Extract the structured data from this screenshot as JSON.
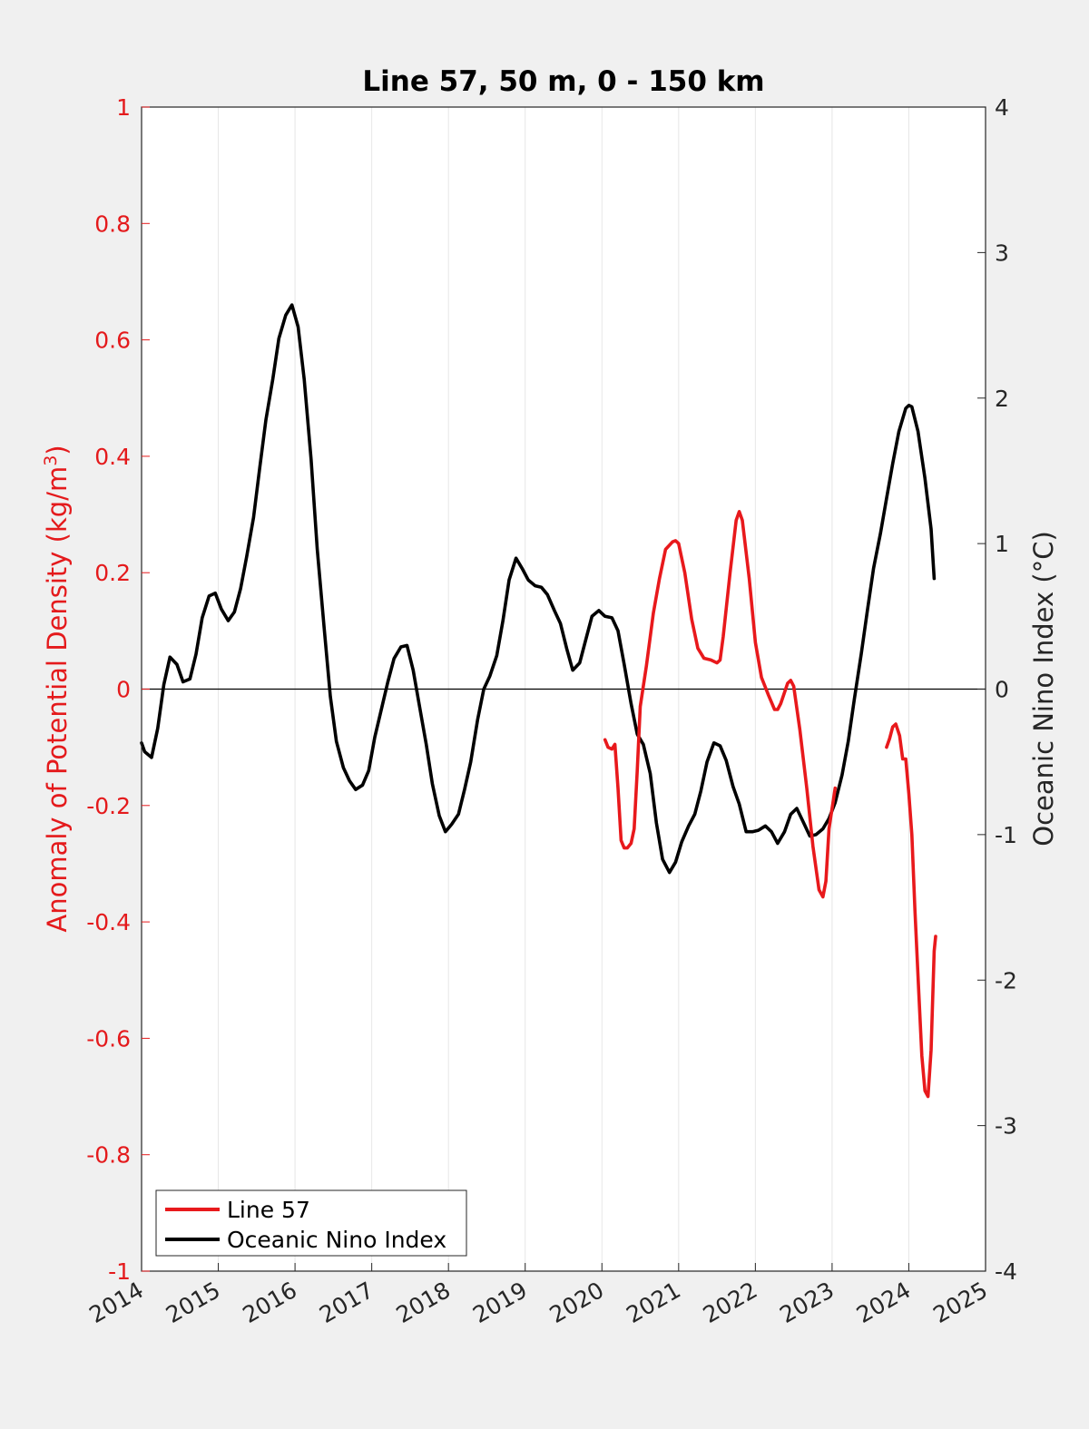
{
  "chart_data": {
    "type": "line",
    "title": "Line 57, 50 m, 0 - 150 km",
    "ylabel_left": {
      "main": "Anomaly of Potential Density (kg/m",
      "sup": "3",
      "close": ")"
    },
    "ylabel_right": "Oceanic Nino Index (°C)",
    "colors": {
      "left_axis": "#e41a1c",
      "line57": "#e8191c",
      "oni": "#000000",
      "grid": "#e6e6e6"
    },
    "xlim": [
      2014,
      2025
    ],
    "ylim_left": [
      -1,
      1
    ],
    "ylim_right": [
      -4,
      4
    ],
    "x_ticks": [
      "2014",
      "2015",
      "2016",
      "2017",
      "2018",
      "2019",
      "2020",
      "2021",
      "2022",
      "2023",
      "2024",
      "2025"
    ],
    "y_left_ticks": [
      "1",
      "0.8",
      "0.6",
      "0.4",
      "0.2",
      "0",
      "-0.2",
      "-0.4",
      "-0.6",
      "-0.8",
      "-1"
    ],
    "y_right_ticks": [
      "4",
      "3",
      "2",
      "1",
      "0",
      "-1",
      "-2",
      "-3",
      "-4"
    ],
    "grid": "vertical",
    "zero_line": true,
    "legend": {
      "placement": "bottom-left",
      "entries": [
        "Line 57",
        "Oceanic Nino Index"
      ]
    },
    "series": [
      {
        "name": "Line 57",
        "axis": "left",
        "segments": [
          [
            [
              2020.04,
              -0.087
            ],
            [
              2020.08,
              -0.1
            ],
            [
              2020.13,
              -0.103
            ],
            [
              2020.17,
              -0.095
            ],
            [
              2020.21,
              -0.17
            ],
            [
              2020.25,
              -0.26
            ],
            [
              2020.29,
              -0.273
            ],
            [
              2020.33,
              -0.273
            ],
            [
              2020.38,
              -0.265
            ],
            [
              2020.42,
              -0.24
            ],
            [
              2020.46,
              -0.14
            ],
            [
              2020.5,
              -0.03
            ],
            [
              2020.58,
              0.04
            ],
            [
              2020.67,
              0.13
            ],
            [
              2020.75,
              0.19
            ],
            [
              2020.83,
              0.24
            ],
            [
              2020.92,
              0.253
            ],
            [
              2020.96,
              0.255
            ],
            [
              2021.0,
              0.25
            ],
            [
              2021.08,
              0.2
            ],
            [
              2021.17,
              0.12
            ],
            [
              2021.25,
              0.07
            ],
            [
              2021.33,
              0.053
            ],
            [
              2021.42,
              0.05
            ],
            [
              2021.5,
              0.045
            ],
            [
              2021.54,
              0.05
            ],
            [
              2021.58,
              0.09
            ],
            [
              2021.67,
              0.2
            ],
            [
              2021.75,
              0.29
            ],
            [
              2021.79,
              0.305
            ],
            [
              2021.83,
              0.29
            ],
            [
              2021.92,
              0.19
            ],
            [
              2022.0,
              0.08
            ],
            [
              2022.08,
              0.02
            ],
            [
              2022.17,
              -0.01
            ],
            [
              2022.25,
              -0.035
            ],
            [
              2022.29,
              -0.035
            ],
            [
              2022.33,
              -0.025
            ],
            [
              2022.42,
              0.01
            ],
            [
              2022.46,
              0.015
            ],
            [
              2022.5,
              0.005
            ],
            [
              2022.58,
              -0.07
            ],
            [
              2022.67,
              -0.17
            ],
            [
              2022.75,
              -0.27
            ],
            [
              2022.83,
              -0.345
            ],
            [
              2022.88,
              -0.357
            ],
            [
              2022.92,
              -0.33
            ],
            [
              2022.96,
              -0.24
            ],
            [
              2023.04,
              -0.17
            ]
          ],
          [
            [
              2023.71,
              -0.1
            ],
            [
              2023.75,
              -0.085
            ],
            [
              2023.79,
              -0.065
            ],
            [
              2023.83,
              -0.06
            ],
            [
              2023.88,
              -0.08
            ],
            [
              2023.92,
              -0.12
            ],
            [
              2023.96,
              -0.12
            ],
            [
              2024.0,
              -0.18
            ],
            [
              2024.04,
              -0.25
            ],
            [
              2024.08,
              -0.38
            ],
            [
              2024.13,
              -0.52
            ],
            [
              2024.17,
              -0.63
            ],
            [
              2024.21,
              -0.69
            ],
            [
              2024.25,
              -0.7
            ],
            [
              2024.29,
              -0.62
            ],
            [
              2024.33,
              -0.45
            ],
            [
              2024.35,
              -0.425
            ]
          ]
        ]
      },
      {
        "name": "Oceanic Nino Index",
        "axis": "right",
        "segments": [
          [
            [
              2014.0,
              -0.37
            ],
            [
              2014.04,
              -0.43
            ],
            [
              2014.13,
              -0.47
            ],
            [
              2014.21,
              -0.27
            ],
            [
              2014.29,
              0.03
            ],
            [
              2014.37,
              0.22
            ],
            [
              2014.46,
              0.17
            ],
            [
              2014.54,
              0.05
            ],
            [
              2014.63,
              0.07
            ],
            [
              2014.71,
              0.24
            ],
            [
              2014.79,
              0.49
            ],
            [
              2014.88,
              0.64
            ],
            [
              2014.96,
              0.66
            ],
            [
              2015.04,
              0.55
            ],
            [
              2015.13,
              0.47
            ],
            [
              2015.21,
              0.53
            ],
            [
              2015.29,
              0.69
            ],
            [
              2015.37,
              0.91
            ],
            [
              2015.46,
              1.18
            ],
            [
              2015.54,
              1.52
            ],
            [
              2015.62,
              1.85
            ],
            [
              2015.71,
              2.13
            ],
            [
              2015.79,
              2.41
            ],
            [
              2015.88,
              2.57
            ],
            [
              2015.96,
              2.64
            ],
            [
              2016.04,
              2.49
            ],
            [
              2016.12,
              2.13
            ],
            [
              2016.21,
              1.58
            ],
            [
              2016.29,
              0.96
            ],
            [
              2016.38,
              0.42
            ],
            [
              2016.46,
              -0.05
            ],
            [
              2016.54,
              -0.36
            ],
            [
              2016.63,
              -0.54
            ],
            [
              2016.71,
              -0.63
            ],
            [
              2016.79,
              -0.69
            ],
            [
              2016.88,
              -0.66
            ],
            [
              2016.96,
              -0.56
            ],
            [
              2017.04,
              -0.33
            ],
            [
              2017.13,
              -0.13
            ],
            [
              2017.21,
              0.05
            ],
            [
              2017.29,
              0.21
            ],
            [
              2017.38,
              0.29
            ],
            [
              2017.46,
              0.3
            ],
            [
              2017.54,
              0.13
            ],
            [
              2017.63,
              -0.14
            ],
            [
              2017.71,
              -0.38
            ],
            [
              2017.79,
              -0.65
            ],
            [
              2017.88,
              -0.87
            ],
            [
              2017.96,
              -0.98
            ],
            [
              2018.04,
              -0.93
            ],
            [
              2018.13,
              -0.86
            ],
            [
              2018.21,
              -0.69
            ],
            [
              2018.29,
              -0.5
            ],
            [
              2018.38,
              -0.21
            ],
            [
              2018.46,
              0.0
            ],
            [
              2018.54,
              0.09
            ],
            [
              2018.63,
              0.23
            ],
            [
              2018.71,
              0.47
            ],
            [
              2018.79,
              0.75
            ],
            [
              2018.88,
              0.9
            ],
            [
              2018.96,
              0.83
            ],
            [
              2019.04,
              0.75
            ],
            [
              2019.13,
              0.71
            ],
            [
              2019.21,
              0.7
            ],
            [
              2019.29,
              0.65
            ],
            [
              2019.38,
              0.54
            ],
            [
              2019.46,
              0.45
            ],
            [
              2019.54,
              0.28
            ],
            [
              2019.62,
              0.13
            ],
            [
              2019.71,
              0.18
            ],
            [
              2019.79,
              0.34
            ],
            [
              2019.87,
              0.5
            ],
            [
              2019.96,
              0.54
            ],
            [
              2020.04,
              0.5
            ],
            [
              2020.13,
              0.49
            ],
            [
              2020.21,
              0.4
            ],
            [
              2020.29,
              0.17
            ],
            [
              2020.38,
              -0.1
            ],
            [
              2020.46,
              -0.31
            ],
            [
              2020.54,
              -0.38
            ],
            [
              2020.63,
              -0.58
            ],
            [
              2020.71,
              -0.92
            ],
            [
              2020.79,
              -1.17
            ],
            [
              2020.88,
              -1.26
            ],
            [
              2020.96,
              -1.19
            ],
            [
              2021.04,
              -1.05
            ],
            [
              2021.13,
              -0.94
            ],
            [
              2021.21,
              -0.86
            ],
            [
              2021.29,
              -0.7
            ],
            [
              2021.37,
              -0.5
            ],
            [
              2021.46,
              -0.37
            ],
            [
              2021.54,
              -0.39
            ],
            [
              2021.62,
              -0.49
            ],
            [
              2021.71,
              -0.67
            ],
            [
              2021.79,
              -0.79
            ],
            [
              2021.88,
              -0.98
            ],
            [
              2021.96,
              -0.98
            ],
            [
              2022.04,
              -0.97
            ],
            [
              2022.13,
              -0.94
            ],
            [
              2022.21,
              -0.98
            ],
            [
              2022.29,
              -1.06
            ],
            [
              2022.38,
              -0.98
            ],
            [
              2022.46,
              -0.86
            ],
            [
              2022.54,
              -0.82
            ],
            [
              2022.63,
              -0.92
            ],
            [
              2022.71,
              -1.01
            ],
            [
              2022.79,
              -1.0
            ],
            [
              2022.88,
              -0.96
            ],
            [
              2022.96,
              -0.89
            ],
            [
              2023.04,
              -0.78
            ],
            [
              2023.13,
              -0.59
            ],
            [
              2023.21,
              -0.36
            ],
            [
              2023.29,
              -0.07
            ],
            [
              2023.38,
              0.24
            ],
            [
              2023.46,
              0.54
            ],
            [
              2023.54,
              0.83
            ],
            [
              2023.63,
              1.07
            ],
            [
              2023.71,
              1.31
            ],
            [
              2023.79,
              1.55
            ],
            [
              2023.87,
              1.77
            ],
            [
              2023.96,
              1.93
            ],
            [
              2024.0,
              1.95
            ],
            [
              2024.04,
              1.94
            ],
            [
              2024.12,
              1.77
            ],
            [
              2024.21,
              1.45
            ],
            [
              2024.29,
              1.1
            ],
            [
              2024.33,
              0.76
            ]
          ]
        ]
      }
    ]
  }
}
